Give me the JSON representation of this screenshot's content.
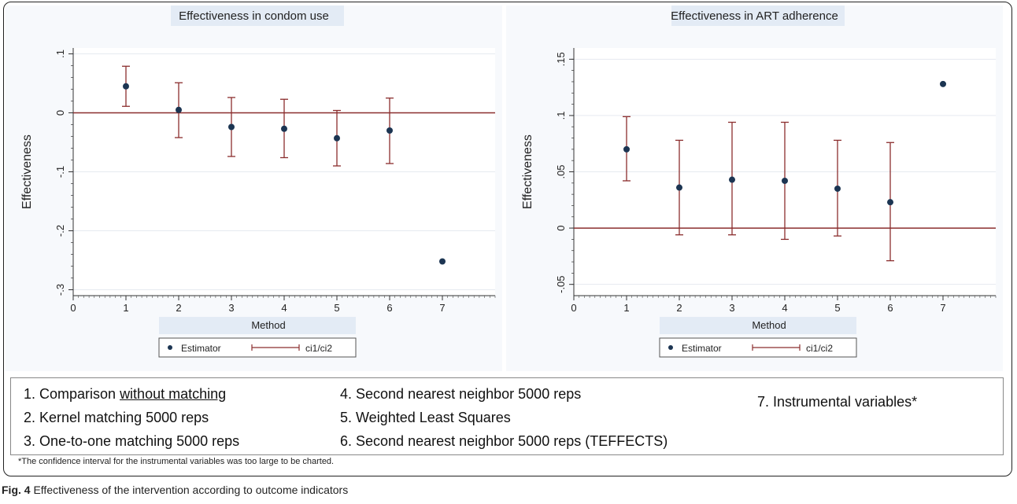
{
  "chart_data": [
    {
      "type": "scatter",
      "title": "Effectiveness in condom use",
      "xlabel": "Method",
      "ylabel": "Effectiveness",
      "xlim": [
        0,
        8
      ],
      "ylim": [
        -0.31,
        0.11
      ],
      "x_ticks": [
        0,
        1,
        2,
        3,
        4,
        5,
        6,
        7
      ],
      "x_tick_labels": [
        "0",
        "1",
        "2",
        "3",
        "4",
        "5",
        "6",
        "7"
      ],
      "y_ticks": [
        -0.3,
        -0.2,
        -0.1,
        0,
        0.1
      ],
      "y_tick_labels": [
        "-.3",
        "-.2",
        "-.1",
        "0",
        ".1"
      ],
      "reference_line": 0,
      "grid": true,
      "legend_position": "bottom-center",
      "series": [
        {
          "name": "Estimator",
          "kind": "point",
          "x": [
            1,
            2,
            3,
            4,
            5,
            6,
            7
          ],
          "y": [
            0.045,
            0.005,
            -0.024,
            -0.027,
            -0.043,
            -0.03,
            -0.252
          ]
        },
        {
          "name": "ci1/ci2",
          "kind": "range",
          "x": [
            1,
            2,
            3,
            4,
            5,
            6
          ],
          "low": [
            0.011,
            -0.042,
            -0.074,
            -0.076,
            -0.09,
            -0.086
          ],
          "high": [
            0.079,
            0.051,
            0.026,
            0.023,
            0.004,
            0.025
          ]
        }
      ]
    },
    {
      "type": "scatter",
      "title": "Effectiveness in ART adherence",
      "xlabel": "Method",
      "ylabel": "Effectiveness",
      "xlim": [
        0,
        8
      ],
      "ylim": [
        -0.06,
        0.16
      ],
      "x_ticks": [
        0,
        1,
        2,
        3,
        4,
        5,
        6,
        7
      ],
      "x_tick_labels": [
        "0",
        "1",
        "2",
        "3",
        "4",
        "5",
        "6",
        "7"
      ],
      "y_ticks": [
        -0.05,
        0,
        0.05,
        0.1,
        0.15
      ],
      "y_tick_labels": [
        "-.05",
        "0",
        ".05",
        ".1",
        ".15"
      ],
      "reference_line": 0,
      "grid": true,
      "legend_position": "bottom-center",
      "series": [
        {
          "name": "Estimator",
          "kind": "point",
          "x": [
            1,
            2,
            3,
            4,
            5,
            6,
            7
          ],
          "y": [
            0.07,
            0.036,
            0.043,
            0.042,
            0.035,
            0.023,
            0.128
          ]
        },
        {
          "name": "ci1/ci2",
          "kind": "range",
          "x": [
            1,
            2,
            3,
            4,
            5,
            6
          ],
          "low": [
            0.042,
            -0.006,
            -0.006,
            -0.01,
            -0.007,
            -0.029
          ],
          "high": [
            0.099,
            0.078,
            0.094,
            0.094,
            0.078,
            0.076
          ]
        }
      ]
    }
  ],
  "colors": {
    "marker": "#1c3552",
    "ci": "#8b2e2e",
    "refline": "#8b2e2e",
    "grid": "#e6eaf0",
    "title_band": "#e3ebf5",
    "axis": "#333333"
  },
  "methods": [
    {
      "pre": "1. Comparison ",
      "underlined": "without matching"
    },
    {
      "pre": "2. Kernel matching 5000 reps",
      "underlined": ""
    },
    {
      "pre": "3. One-to-one matching 5000 reps",
      "underlined": ""
    },
    {
      "pre": "4. Second nearest neighbor 5000 reps",
      "underlined": ""
    },
    {
      "pre": "5. Weighted Least Squares",
      "underlined": ""
    },
    {
      "pre": "6. Second nearest neighbor 5000 reps (TEFFECTS)",
      "underlined": ""
    },
    {
      "pre": "7. Instrumental variables*",
      "underlined": ""
    }
  ],
  "footnote": "*The confidence interval for the instrumental variables was too large to be charted.",
  "caption": {
    "label": "Fig. 4",
    "text": " Effectiveness of the intervention according to outcome indicators"
  }
}
